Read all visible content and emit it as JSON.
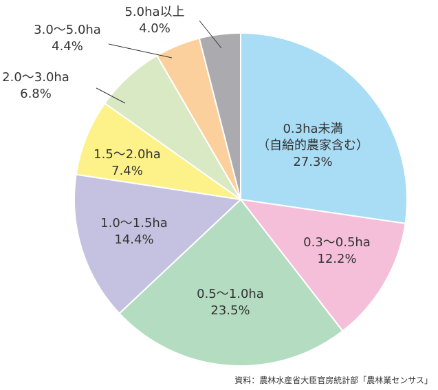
{
  "chart_data": {
    "type": "pie",
    "categories": [
      "0.3ha未満\n（自給的農家含む）",
      "0.3～0.5ha",
      "0.5～1.0ha",
      "1.0～1.5ha",
      "1.5～2.0ha",
      "2.0～3.0ha",
      "3.0～5.0ha",
      "5.0ha以上"
    ],
    "values": [
      27.3,
      12.2,
      23.5,
      14.4,
      7.4,
      6.8,
      4.4,
      4.0
    ],
    "value_labels": [
      "27.3%",
      "12.2%",
      "23.5%",
      "14.4%",
      "7.4%",
      "6.8%",
      "4.4%",
      "4.0%"
    ],
    "colors": [
      "#a9dcf5",
      "#f5bfd9",
      "#b3dcc0",
      "#c4c2e0",
      "#fdf28a",
      "#d9e9c3",
      "#fcd09c",
      "#abaaae"
    ],
    "source": "資料：農林水産省大臣官房統計部「農林業センサス」"
  }
}
